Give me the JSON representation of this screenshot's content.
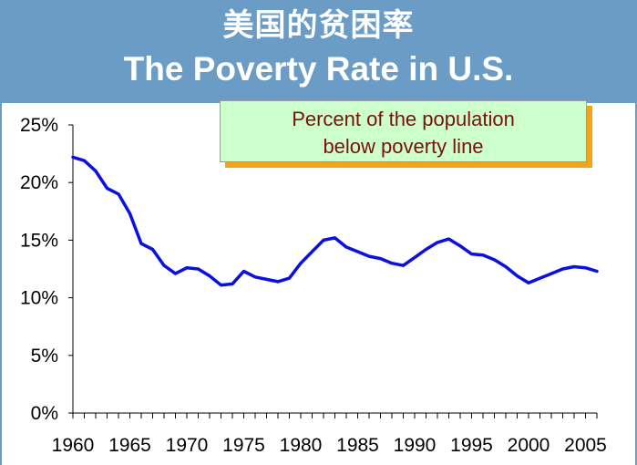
{
  "header": {
    "title_cn": "美国的贫困率",
    "title_en": "The Poverty Rate in U.S."
  },
  "callout": {
    "line1": "Percent of the population",
    "line2": "below poverty line"
  },
  "colors": {
    "header_bg": "#6a9cc6",
    "line": "#0a10e0",
    "callout_bg": "#ccffcc",
    "callout_text": "#7a1010",
    "callout_shadow": "#f5a31a"
  },
  "chart_data": {
    "type": "line",
    "title": "",
    "xlabel": "",
    "ylabel": "",
    "xlim": [
      1960,
      2006
    ],
    "ylim": [
      0,
      25
    ],
    "grid": false,
    "x_ticks": [
      "1960",
      "1965",
      "1970",
      "1975",
      "1980",
      "1985",
      "1990",
      "1995",
      "2000",
      "2005"
    ],
    "y_ticks": [
      "0%",
      "5%",
      "10%",
      "15%",
      "20%",
      "25%"
    ],
    "series": [
      {
        "x": [
          1960,
          1961,
          1962,
          1963,
          1964,
          1965,
          1966,
          1967,
          1968,
          1969,
          1970,
          1971,
          1972,
          1973,
          1974,
          1975,
          1976,
          1977,
          1978,
          1979,
          1980,
          1981,
          1982,
          1983,
          1984,
          1985,
          1986,
          1987,
          1988,
          1989,
          1990,
          1991,
          1992,
          1993,
          1994,
          1995,
          1996,
          1997,
          1998,
          1999,
          2000,
          2001,
          2002,
          2003,
          2004,
          2005,
          2006
        ],
        "y": [
          22.2,
          21.9,
          21.0,
          19.5,
          19.0,
          17.3,
          14.7,
          14.2,
          12.8,
          12.1,
          12.6,
          12.5,
          11.9,
          11.1,
          11.2,
          12.3,
          11.8,
          11.6,
          11.4,
          11.7,
          13.0,
          14.0,
          15.0,
          15.2,
          14.4,
          14.0,
          13.6,
          13.4,
          13.0,
          12.8,
          13.5,
          14.2,
          14.8,
          15.1,
          14.5,
          13.8,
          13.7,
          13.3,
          12.7,
          11.9,
          11.3,
          11.7,
          12.1,
          12.5,
          12.7,
          12.6,
          12.3
        ]
      }
    ]
  }
}
